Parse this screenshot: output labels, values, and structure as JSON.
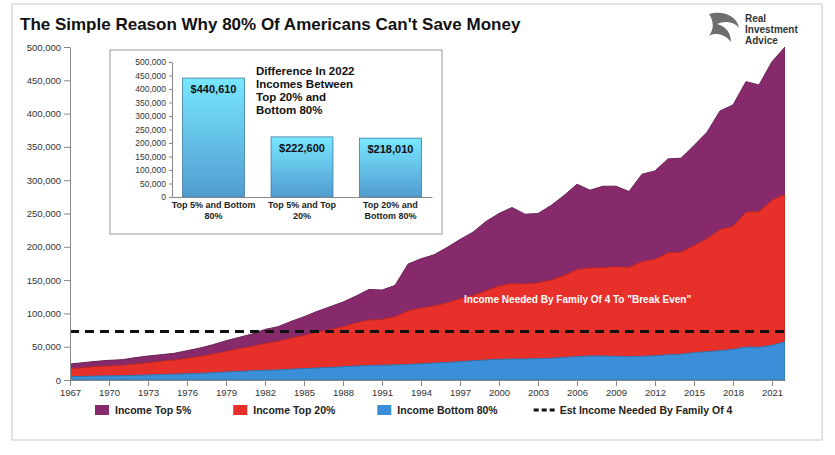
{
  "chart_data": [
    {
      "type": "area",
      "title": "The Simple Reason Why 80% Of Americans Can't Save Money",
      "logo": [
        "Real",
        "Investment",
        "Advice"
      ],
      "annotation": "Income Needed By Family Of 4 To \"Break Even\"",
      "legend": "bottom",
      "grid": false,
      "x": [
        1967,
        1968,
        1969,
        1970,
        1971,
        1972,
        1973,
        1974,
        1975,
        1976,
        1977,
        1978,
        1979,
        1980,
        1981,
        1982,
        1983,
        1984,
        1985,
        1986,
        1987,
        1988,
        1989,
        1990,
        1991,
        1992,
        1993,
        1994,
        1995,
        1996,
        1997,
        1998,
        1999,
        2000,
        2001,
        2002,
        2003,
        2004,
        2005,
        2006,
        2007,
        2008,
        2009,
        2010,
        2011,
        2012,
        2013,
        2014,
        2015,
        2016,
        2017,
        2018,
        2019,
        2020,
        2021,
        2022
      ],
      "xlim": [
        1967,
        2022
      ],
      "xticks": [
        1967,
        1970,
        1973,
        1976,
        1979,
        1982,
        1985,
        1988,
        1991,
        1994,
        1997,
        2000,
        2003,
        2006,
        2009,
        2012,
        2015,
        2018,
        2021
      ],
      "ylim": [
        0,
        500000
      ],
      "yticks": [
        0,
        {
          "value": 50000,
          "label": "50,000"
        },
        {
          "value": 100000,
          "label": "100,000"
        },
        {
          "value": 150000,
          "label": "150,000"
        },
        {
          "value": 200000,
          "label": "200,000"
        },
        {
          "value": 250000,
          "label": "250,000"
        },
        {
          "value": 300000,
          "label": "300,000"
        },
        {
          "value": 350000,
          "label": "350,000"
        },
        {
          "value": 400000,
          "label": "400,000"
        },
        {
          "value": 450000,
          "label": "450,000"
        },
        {
          "value": 500000,
          "label": "500,000"
        }
      ],
      "series": [
        {
          "name": "Income Top 5%",
          "color": "#862a6c",
          "type": "area",
          "values": [
            24000,
            26000,
            28000,
            29500,
            30500,
            33500,
            36000,
            38000,
            40000,
            44000,
            48000,
            53000,
            59000,
            64000,
            69000,
            76000,
            80000,
            88000,
            95000,
            103000,
            110000,
            117000,
            126000,
            136000,
            135000,
            142000,
            174000,
            182000,
            188000,
            199000,
            211000,
            222000,
            238000,
            250000,
            259000,
            249000,
            250000,
            262000,
            277000,
            294000,
            285000,
            291000,
            291000,
            283000,
            309000,
            314000,
            332000,
            333000,
            352000,
            372000,
            404000,
            413000,
            448000,
            443000,
            478000,
            500000
          ]
        },
        {
          "name": "Income Top 20%",
          "color": "#e8302a",
          "type": "area",
          "values": [
            17000,
            18500,
            20000,
            21000,
            22000,
            24000,
            26000,
            28000,
            30000,
            32500,
            35500,
            39000,
            43000,
            47000,
            50500,
            55000,
            58000,
            63000,
            67000,
            72000,
            76000,
            80000,
            86000,
            90000,
            91000,
            95000,
            104000,
            108000,
            111000,
            116000,
            122000,
            127000,
            134000,
            141000,
            145000,
            144000,
            146000,
            150000,
            157000,
            166000,
            168000,
            169000,
            170000,
            169000,
            178000,
            181000,
            191000,
            192000,
            202000,
            212000,
            226000,
            231000,
            252000,
            253000,
            270000,
            279000
          ]
        },
        {
          "name": "Income Bottom 80%",
          "color": "#3b8fd9",
          "type": "area",
          "values": [
            5000,
            5400,
            5900,
            6200,
            6500,
            7000,
            7600,
            8200,
            8700,
            9400,
            10100,
            11000,
            12000,
            12900,
            13900,
            14600,
            15200,
            16200,
            17100,
            18000,
            18900,
            19900,
            21000,
            21800,
            22200,
            22700,
            23400,
            24400,
            25500,
            26400,
            27600,
            28900,
            30100,
            31200,
            31500,
            31600,
            32100,
            32600,
            33900,
            35200,
            36200,
            36000,
            35600,
            35200,
            35700,
            36300,
            37900,
            38800,
            41100,
            42600,
            44100,
            46000,
            49500,
            49200,
            52000,
            57500
          ]
        },
        {
          "name": "Est Income Needed By Family Of 4",
          "color": "#111111",
          "type": "line",
          "line_style": "dashed",
          "values": [
            73000,
            73000,
            73000,
            73000,
            73000,
            73000,
            73000,
            73000,
            73000,
            73000,
            73000,
            73000,
            73000,
            73000,
            73000,
            73000,
            73000,
            73000,
            73000,
            73000,
            73000,
            73000,
            73000,
            73000,
            73000,
            73000,
            73000,
            73000,
            73000,
            73000,
            73000,
            73000,
            73000,
            73000,
            73000,
            73000,
            73000,
            73000,
            73000,
            73000,
            73000,
            73000,
            73000,
            73000,
            73000,
            73000,
            73000,
            73000,
            73000,
            73000,
            73000,
            73000,
            73000,
            73000,
            73000,
            73000
          ]
        }
      ]
    },
    {
      "type": "bar",
      "title": "Difference In 2022\nIncomes Between\nTop 20% and\nBottom 80%",
      "categories": [
        "Top 5% and Bottom\n80%",
        "Top 5% and Top\n20%",
        "Top 20% and\nBottom 80%"
      ],
      "values": [
        440610,
        222600,
        218010
      ],
      "value_labels": [
        "$440,610",
        "$222,600",
        "$218,010"
      ],
      "data_labels": true,
      "color": "#5aaee8",
      "grid": false,
      "ylim": [
        0,
        500000
      ],
      "yticks": [
        0,
        {
          "value": 50000,
          "label": "50,000"
        },
        {
          "value": 100000,
          "label": "100,000"
        },
        {
          "value": 150000,
          "label": "150,000"
        },
        {
          "value": 200000,
          "label": "200,000"
        },
        {
          "value": 250000,
          "label": "250,000"
        },
        {
          "value": 300000,
          "label": "300,000"
        },
        {
          "value": 350000,
          "label": "350,000"
        },
        {
          "value": 400000,
          "label": "400,000"
        },
        {
          "value": 450000,
          "label": "450,000"
        },
        {
          "value": 500000,
          "label": "500,000"
        }
      ]
    }
  ]
}
